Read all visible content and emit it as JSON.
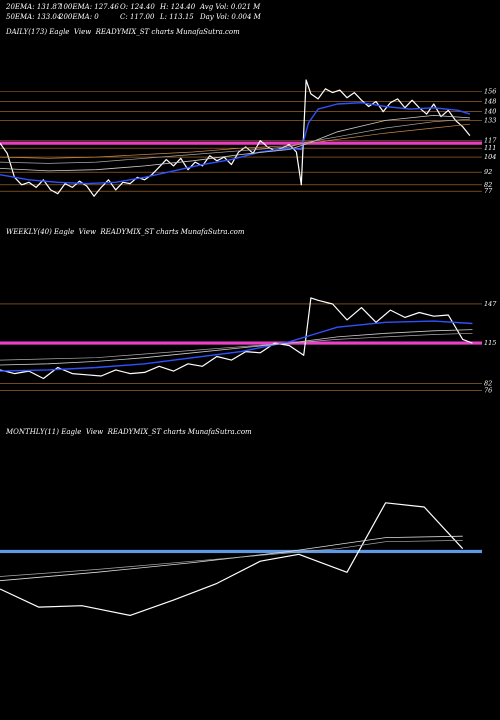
{
  "header": {
    "row1": [
      {
        "label": "20EMA: 131.87"
      },
      {
        "label": "100EMA: 127.46"
      },
      {
        "label": "O: 124.40"
      },
      {
        "label": "H: 124.40"
      },
      {
        "label": "Avg Vol: 0.021 M"
      }
    ],
    "row2": [
      {
        "label": "50EMA: 133.04"
      },
      {
        "label": "200EMA: 0"
      },
      {
        "label": "C: 117.00"
      },
      {
        "label": "L: 113.15"
      },
      {
        "label": "Day Vol: 0.004 M"
      }
    ]
  },
  "chart_data": [
    {
      "type": "line",
      "title": "DAILY(173) Eagle  View  READYMIX_ST charts MunafaSutra.com",
      "y_ticks": [
        "156",
        "148",
        "140",
        "133",
        "117",
        "111",
        "104",
        "92",
        "82",
        "77"
      ],
      "y_tick_values": [
        156,
        148,
        140,
        133,
        117,
        111,
        104,
        92,
        82,
        77
      ],
      "ylim": [
        70,
        165
      ],
      "xlim": [
        0,
        100
      ],
      "hlines": [
        156,
        148,
        140,
        133,
        117,
        111,
        104,
        92,
        82,
        77
      ],
      "highlight_hline": 115,
      "series": [
        {
          "key": "price",
          "color": "#ffffff",
          "width": 1.2,
          "x": [
            0,
            1.5,
            3,
            4.5,
            6,
            7.5,
            9,
            10.5,
            12,
            13.5,
            15,
            16.5,
            18,
            19.5,
            21,
            22.5,
            24,
            25.5,
            27,
            28.5,
            30,
            31.5,
            33,
            34.5,
            36,
            37.5,
            39,
            40.5,
            42,
            43.5,
            45,
            46.5,
            48,
            49.5,
            51,
            52.5,
            54,
            55.5,
            57,
            58.5,
            60,
            61.5,
            62.5,
            63.5,
            64.5,
            66,
            67.5,
            69,
            70.5,
            72,
            73.5,
            75,
            76.5,
            78,
            79.5,
            81,
            82.5,
            84,
            85.5,
            87,
            88.5,
            90,
            91.5,
            93,
            94.5,
            96,
            97.5
          ],
          "y": [
            115,
            107,
            88,
            82,
            84,
            80,
            86,
            78,
            75,
            83,
            80,
            85,
            81,
            73,
            80,
            86,
            78,
            84,
            83,
            88,
            86,
            90,
            96,
            102,
            97,
            103,
            94,
            100,
            97,
            105,
            101,
            104,
            98,
            108,
            112,
            107,
            117,
            112,
            109,
            111,
            114,
            108,
            82,
            165,
            154,
            150,
            158,
            155,
            157,
            151,
            155,
            149,
            144,
            148,
            140,
            147,
            150,
            143,
            149,
            143,
            138,
            146,
            136,
            141,
            133,
            128,
            121
          ]
        },
        {
          "key": "ema20",
          "color": "#2f52ff",
          "width": 1.4,
          "x": [
            0,
            6,
            12,
            18,
            24,
            30,
            36,
            42,
            48,
            54,
            60,
            62.5,
            64,
            66,
            70,
            75,
            80,
            85,
            90,
            95,
            97.5
          ],
          "y": [
            90,
            86,
            84,
            83,
            84,
            88,
            93,
            98,
            102,
            108,
            111,
            110,
            131,
            142,
            146,
            147,
            144,
            142,
            143,
            141,
            138
          ]
        },
        {
          "key": "ema50",
          "color": "#cccccc",
          "width": 0.8,
          "x": [
            0,
            10,
            20,
            30,
            40,
            50,
            60,
            64,
            70,
            80,
            90,
            97.5
          ],
          "y": [
            95,
            93,
            94,
            97,
            101,
            106,
            110,
            115,
            124,
            133,
            137,
            135
          ]
        },
        {
          "key": "ema100",
          "color": "#aaaaaa",
          "width": 0.7,
          "x": [
            0,
            10,
            20,
            30,
            40,
            50,
            60,
            64,
            70,
            80,
            90,
            97.5
          ],
          "y": [
            100,
            99,
            100,
            103,
            106,
            109,
            112,
            116,
            120,
            127,
            132,
            134
          ]
        },
        {
          "key": "ema200",
          "color": "#c8884a",
          "width": 0.7,
          "x": [
            0,
            10,
            20,
            30,
            40,
            50,
            60,
            64,
            70,
            80,
            90,
            97.5
          ],
          "y": [
            104,
            103,
            104,
            106,
            108,
            111,
            113,
            115,
            118,
            123,
            127,
            130
          ]
        }
      ]
    },
    {
      "type": "line",
      "title": "WEEKLY(40) Eagle  View  READYMIX_ST charts MunafaSutra.com",
      "y_ticks": [
        "147",
        "115",
        "82",
        "76"
      ],
      "y_tick_values": [
        147,
        115,
        82,
        76
      ],
      "ylim": [
        70,
        165
      ],
      "xlim": [
        0,
        100
      ],
      "hlines": [
        147,
        115,
        82,
        76
      ],
      "highlight_hline": 115,
      "series": [
        {
          "key": "price",
          "color": "#ffffff",
          "width": 1.2,
          "x": [
            0,
            3,
            6,
            9,
            12,
            15,
            18,
            21,
            24,
            27,
            30,
            33,
            36,
            39,
            42,
            45,
            48,
            51,
            54,
            57,
            60,
            63,
            64.5,
            66,
            69,
            72,
            75,
            78,
            81,
            84,
            87,
            90,
            93,
            96,
            98
          ],
          "y": [
            93,
            90,
            92,
            86,
            95,
            90,
            89,
            88,
            93,
            90,
            91,
            96,
            92,
            98,
            96,
            104,
            101,
            108,
            107,
            115,
            113,
            105,
            152,
            150,
            147,
            134,
            144,
            132,
            142,
            136,
            140,
            137,
            138,
            118,
            115
          ]
        },
        {
          "key": "ema20",
          "color": "#2f52ff",
          "width": 1.4,
          "x": [
            0,
            10,
            20,
            30,
            40,
            50,
            60,
            65,
            70,
            80,
            90,
            98
          ],
          "y": [
            92,
            93,
            95,
            98,
            103,
            108,
            116,
            122,
            128,
            132,
            133,
            131
          ]
        },
        {
          "key": "ema50",
          "color": "#cccccc",
          "width": 0.8,
          "x": [
            0,
            10,
            20,
            30,
            40,
            50,
            60,
            70,
            80,
            90,
            98
          ],
          "y": [
            97,
            98,
            100,
            103,
            107,
            111,
            115,
            120,
            123,
            125,
            126
          ]
        },
        {
          "key": "ema100",
          "color": "#aaaaaa",
          "width": 0.7,
          "x": [
            0,
            10,
            20,
            30,
            40,
            50,
            60,
            70,
            80,
            90,
            98
          ],
          "y": [
            101,
            102,
            103,
            106,
            109,
            112,
            115,
            118,
            120,
            122,
            123
          ]
        }
      ]
    },
    {
      "type": "line",
      "title": "MONTHLY(11) Eagle  View  READYMIX_ST charts MunafaSutra.com",
      "y_ticks": [],
      "y_tick_values": [],
      "ylim": [
        70,
        165
      ],
      "xlim": [
        0,
        100
      ],
      "hlines": [],
      "highlight_hline": 115,
      "series": [
        {
          "key": "price",
          "color": "#ffffff",
          "width": 1.2,
          "x": [
            0,
            8,
            17,
            27,
            36,
            45,
            54,
            62,
            72,
            80,
            88,
            96
          ],
          "y": [
            88,
            75,
            76,
            69,
            80,
            92,
            108,
            113,
            100,
            150,
            147,
            117
          ]
        },
        {
          "key": "ema20",
          "color": "#dddddd",
          "width": 0.8,
          "x": [
            0,
            20,
            40,
            60,
            70,
            80,
            96
          ],
          "y": [
            94,
            100,
            107,
            115,
            120,
            125,
            126
          ]
        },
        {
          "key": "ema50",
          "color": "#aaaaaa",
          "width": 0.7,
          "x": [
            0,
            20,
            40,
            60,
            70,
            80,
            96
          ],
          "y": [
            97,
            102,
            108,
            114,
            117,
            122,
            123
          ]
        }
      ]
    }
  ]
}
